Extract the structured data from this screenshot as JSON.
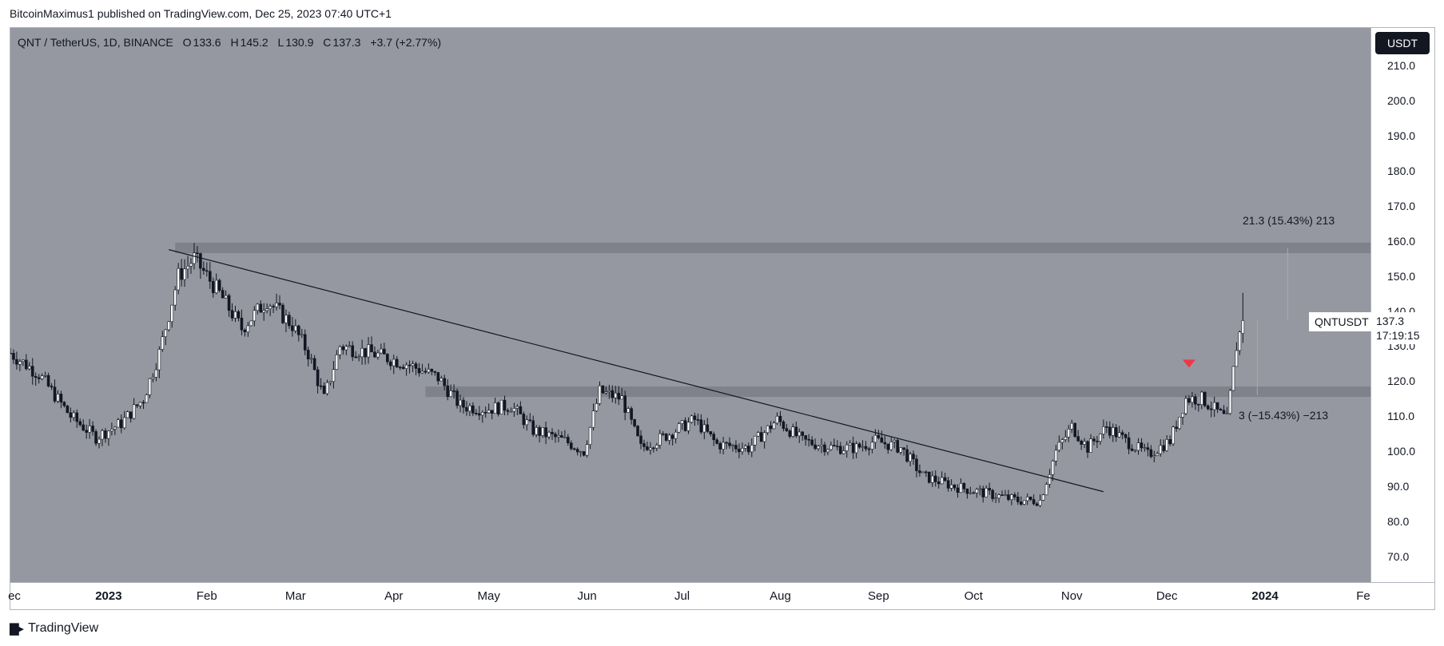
{
  "header": {
    "publish_line": "BitcoinMaximus1 published on TradingView.com, Dec 25, 2023 07:40 UTC+1"
  },
  "legend": {
    "symbol": "QNT / TetherUS, 1D, BINANCE",
    "open_label": "O",
    "open": "133.6",
    "high_label": "H",
    "high": "145.2",
    "low_label": "L",
    "low": "130.9",
    "close_label": "C",
    "close": "137.3",
    "change": "+3.7 (+2.77%)"
  },
  "currency_button": "USDT",
  "price_tag": {
    "symbol": "QNTUSDT",
    "price": "137.3",
    "countdown": "17:19:15"
  },
  "measure_up": "21.3 (15.43%) 213",
  "measure_down": "3 (−15.43%) −213",
  "footer": {
    "brand": "TradingView",
    "logo_icon": "tradingview-logo-icon"
  },
  "colors": {
    "plot_bg": "#9598a1",
    "zone": "#7f828b",
    "candle": "#131722",
    "marker": "#f23645",
    "trendline": "#131722"
  },
  "chart_data": {
    "type": "candlestick",
    "title": "",
    "ylim": [
      62,
      222
    ],
    "y_ticks": [
      "210.0",
      "200.0",
      "190.0",
      "180.0",
      "170.0",
      "160.0",
      "150.0",
      "140.0",
      "130.0",
      "120.0",
      "110.0",
      "100.0",
      "90.0",
      "80.0",
      "70.0"
    ],
    "x_ticks": [
      {
        "label": "ec",
        "date": "2022-12-01",
        "bold": false
      },
      {
        "label": "2023",
        "date": "2023-01-01",
        "bold": true
      },
      {
        "label": "Feb",
        "date": "2023-02-01",
        "bold": false
      },
      {
        "label": "Mar",
        "date": "2023-03-01",
        "bold": false
      },
      {
        "label": "Apr",
        "date": "2023-04-01",
        "bold": false
      },
      {
        "label": "May",
        "date": "2023-05-01",
        "bold": false
      },
      {
        "label": "Jun",
        "date": "2023-06-01",
        "bold": false
      },
      {
        "label": "Jul",
        "date": "2023-07-01",
        "bold": false
      },
      {
        "label": "Aug",
        "date": "2023-08-01",
        "bold": false
      },
      {
        "label": "Sep",
        "date": "2023-09-01",
        "bold": false
      },
      {
        "label": "Oct",
        "date": "2023-10-01",
        "bold": false
      },
      {
        "label": "Nov",
        "date": "2023-11-01",
        "bold": false
      },
      {
        "label": "Dec",
        "date": "2023-12-01",
        "bold": false
      },
      {
        "label": "2024",
        "date": "2024-01-01",
        "bold": true
      },
      {
        "label": "Fe",
        "date": "2024-02-01",
        "bold": false
      }
    ],
    "resistance_zones": [
      {
        "from": 156.5,
        "to": 159.5,
        "start": "2023-01-22"
      },
      {
        "from": 115.5,
        "to": 118.5,
        "start": "2023-04-11"
      }
    ],
    "trendline": {
      "start": {
        "date": "2023-01-20",
        "value": 157.5
      },
      "end": {
        "date": "2023-11-11",
        "value": 88.5
      }
    },
    "marker": {
      "date": "2023-12-08",
      "value": 125,
      "shape": "down-triangle"
    },
    "anchors": [
      [
        "2022-12-01",
        128
      ],
      [
        "2022-12-10",
        122
      ],
      [
        "2022-12-20",
        110
      ],
      [
        "2022-12-28",
        104
      ],
      [
        "2023-01-05",
        108
      ],
      [
        "2023-01-12",
        115
      ],
      [
        "2023-01-17",
        128
      ],
      [
        "2023-01-23",
        150
      ],
      [
        "2023-01-28",
        155
      ],
      [
        "2023-02-05",
        145
      ],
      [
        "2023-02-12",
        135
      ],
      [
        "2023-02-20",
        143
      ],
      [
        "2023-02-28",
        136
      ],
      [
        "2023-03-05",
        128
      ],
      [
        "2023-03-10",
        115
      ],
      [
        "2023-03-15",
        130
      ],
      [
        "2023-03-25",
        128
      ],
      [
        "2023-04-05",
        125
      ],
      [
        "2023-04-15",
        121
      ],
      [
        "2023-04-22",
        113
      ],
      [
        "2023-04-30",
        112
      ],
      [
        "2023-05-08",
        113
      ],
      [
        "2023-05-15",
        106
      ],
      [
        "2023-05-25",
        103
      ],
      [
        "2023-05-31",
        100
      ],
      [
        "2023-06-05",
        117
      ],
      [
        "2023-06-12",
        115
      ],
      [
        "2023-06-18",
        101
      ],
      [
        "2023-06-25",
        104
      ],
      [
        "2023-07-05",
        109
      ],
      [
        "2023-07-12",
        102
      ],
      [
        "2023-07-22",
        101
      ],
      [
        "2023-07-31",
        109
      ],
      [
        "2023-08-08",
        103
      ],
      [
        "2023-08-18",
        101
      ],
      [
        "2023-08-25",
        101
      ],
      [
        "2023-08-31",
        103
      ],
      [
        "2023-09-08",
        101
      ],
      [
        "2023-09-15",
        93
      ],
      [
        "2023-09-25",
        90
      ],
      [
        "2023-10-05",
        88
      ],
      [
        "2023-10-15",
        86
      ],
      [
        "2023-10-22",
        86
      ],
      [
        "2023-10-27",
        100
      ],
      [
        "2023-11-01",
        107
      ],
      [
        "2023-11-06",
        101
      ],
      [
        "2023-11-12",
        107
      ],
      [
        "2023-11-18",
        103
      ],
      [
        "2023-11-25",
        99
      ],
      [
        "2023-12-02",
        103
      ],
      [
        "2023-12-07",
        115
      ],
      [
        "2023-12-12",
        115
      ],
      [
        "2023-12-20",
        109
      ],
      [
        "2023-12-23",
        130
      ],
      [
        "2023-12-25",
        137.3
      ]
    ]
  }
}
